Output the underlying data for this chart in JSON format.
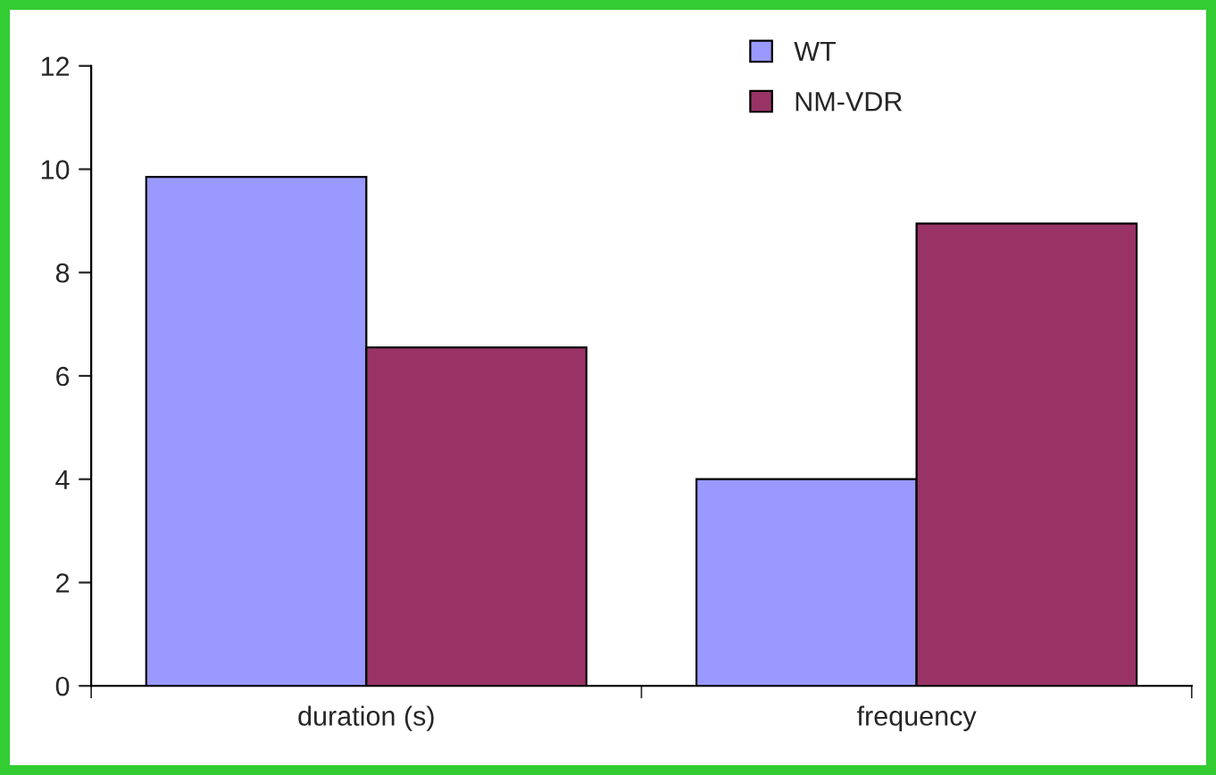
{
  "chart_data": {
    "type": "bar",
    "categories": [
      "duration (s)",
      "frequency"
    ],
    "series": [
      {
        "name": "WT",
        "color": "#9999ff",
        "values": [
          9.85,
          4.0
        ]
      },
      {
        "name": "NM-VDR",
        "color": "#993366",
        "values": [
          6.55,
          8.95
        ]
      }
    ],
    "ylim": [
      0,
      12
    ],
    "yticks": [
      0,
      2,
      4,
      6,
      8,
      10,
      12
    ],
    "grid": false,
    "legend": "top right"
  }
}
